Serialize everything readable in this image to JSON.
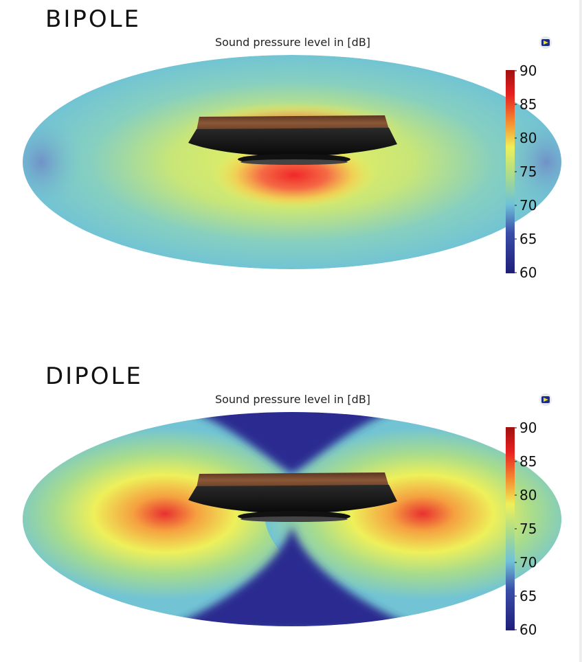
{
  "panels": [
    {
      "heading": "BIPOLE",
      "plot_title": "Sound pressure level in [dB]",
      "pattern": "bipole"
    },
    {
      "heading": "DIPOLE",
      "plot_title": "Sound pressure level in [dB]",
      "pattern": "dipole"
    }
  ],
  "colorbar": {
    "min": 60,
    "max": 90,
    "ticks": [
      "90",
      "85",
      "80",
      "75",
      "70",
      "65",
      "60"
    ]
  },
  "colors": {
    "c60": "#1e1e8a",
    "c65": "#3a4ea8",
    "c70": "#6fc2d8",
    "c75": "#a8dc8c",
    "c80": "#eef05a",
    "c85": "#f5a040",
    "c90": "#c81818",
    "wood": "#7a4a2e",
    "speaker_body": "#151515"
  }
}
